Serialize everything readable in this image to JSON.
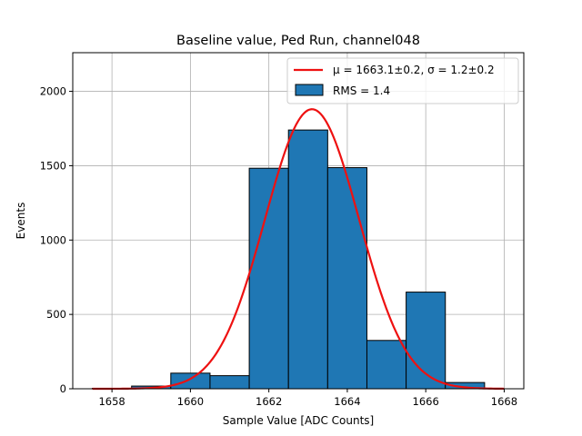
{
  "chart_data": {
    "type": "bar",
    "title": "Baseline value, Ped Run, channel048",
    "xlabel": "Sample Value [ADC Counts]",
    "ylabel": "Events",
    "xlim": [
      1657.0,
      1668.5
    ],
    "ylim": [
      0,
      2260
    ],
    "xticks": [
      1658,
      1660,
      1662,
      1664,
      1666,
      1668
    ],
    "yticks": [
      0,
      500,
      1000,
      1500,
      2000
    ],
    "grid": true,
    "legend_placement": "top-right",
    "histogram": {
      "bins": [
        {
          "x0": 1657.5,
          "x1": 1658.5,
          "value": 3
        },
        {
          "x0": 1658.5,
          "x1": 1659.5,
          "value": 18
        },
        {
          "x0": 1659.5,
          "x1": 1660.5,
          "value": 105
        },
        {
          "x0": 1660.5,
          "x1": 1661.5,
          "value": 88
        },
        {
          "x0": 1661.5,
          "x1": 1662.5,
          "value": 1483
        },
        {
          "x0": 1662.5,
          "x1": 1663.5,
          "value": 1740
        },
        {
          "x0": 1663.5,
          "x1": 1664.5,
          "value": 1487
        },
        {
          "x0": 1664.5,
          "x1": 1665.5,
          "value": 325
        },
        {
          "x0": 1665.5,
          "x1": 1666.5,
          "value": 650
        },
        {
          "x0": 1666.5,
          "x1": 1667.5,
          "value": 42
        }
      ],
      "color": "#1f77b4",
      "legend": "RMS = 1.4"
    },
    "fit": {
      "mu": 1663.1,
      "sigma": 1.2,
      "amplitude": 1880,
      "x_range": [
        1657.5,
        1668
      ],
      "color": "#ee1111",
      "legend": "μ = 1663.1±0.2, σ = 1.2±0.2"
    }
  }
}
